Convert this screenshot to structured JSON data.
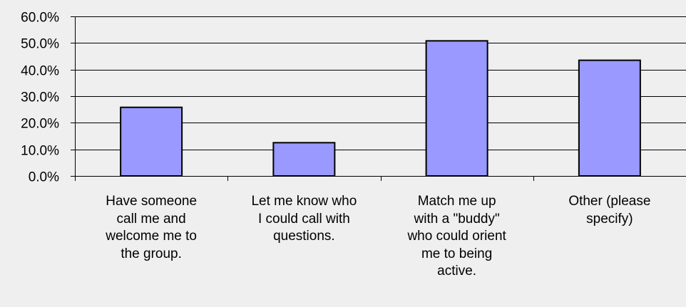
{
  "chart_data": {
    "type": "bar",
    "categories": [
      "Have someone\ncall me and\nwelcome me to\nthe group.",
      "Let me know who\nI could call with\nquestions.",
      "Match me up\nwith a \"buddy\"\nwho could orient\nme to being\nactive.",
      "Other (please\nspecify)"
    ],
    "values": [
      25.8,
      12.5,
      50.8,
      43.5
    ],
    "yticks": [
      "0.0%",
      "10.0%",
      "20.0%",
      "30.0%",
      "40.0%",
      "50.0%",
      "60.0%"
    ],
    "ylim": [
      0,
      60
    ],
    "grid": true,
    "title": "",
    "xlabel": "",
    "ylabel": "",
    "colors": {
      "bar_fill": "#9999ff",
      "bar_stroke": "#000000",
      "grid": "#000000",
      "background": "#efefef"
    }
  }
}
